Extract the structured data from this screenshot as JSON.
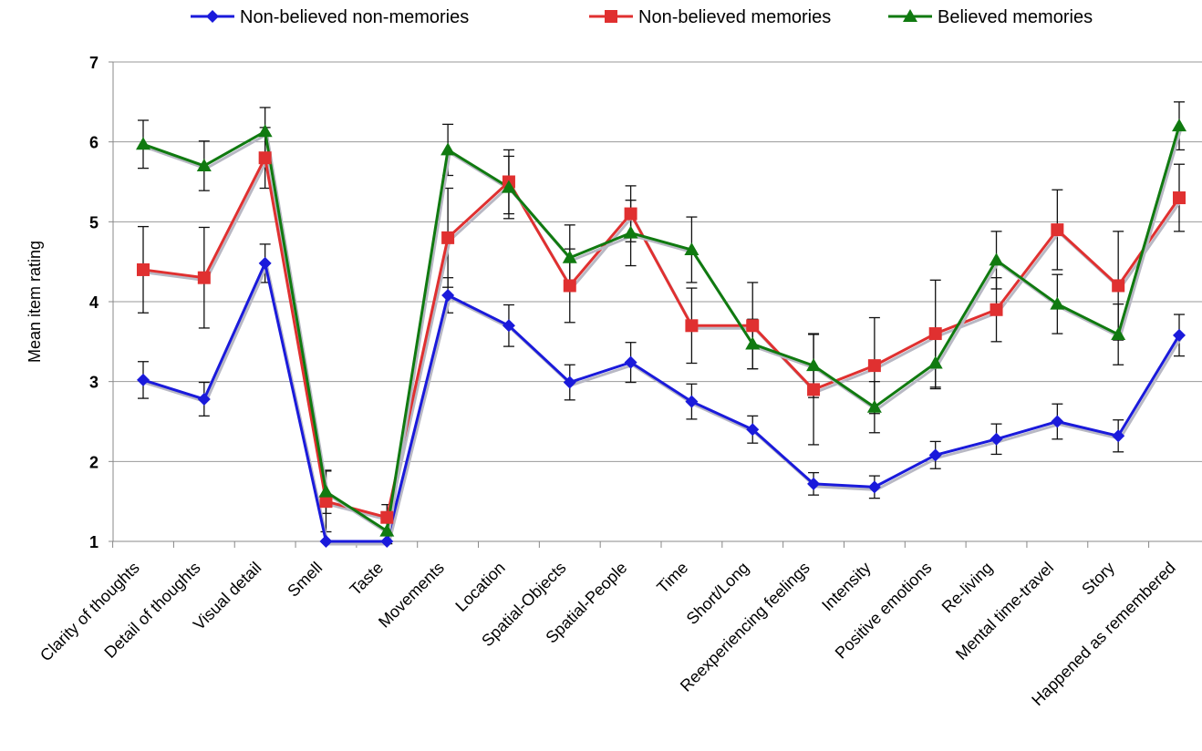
{
  "chart_data": {
    "type": "line",
    "title": "",
    "xlabel": "",
    "ylabel": "Mean item rating",
    "ylim": [
      1,
      7
    ],
    "yticks": [
      1,
      2,
      3,
      4,
      5,
      6,
      7
    ],
    "grid": "horizontal",
    "legend_position": "top",
    "categories": [
      "Clarity of thoughts",
      "Detail of thoughts",
      "Visual detail",
      "Smell",
      "Taste",
      "Movements",
      "Location",
      "Spatial-Objects",
      "Spatial-People",
      "Time",
      "Short/Long",
      "Reexperiencing feelings",
      "Intensity",
      "Positive emotions",
      "Re-living",
      "Mental time-travel",
      "Story",
      "Happened as remembered"
    ],
    "series": [
      {
        "name": "Non-believed non-memories",
        "color": "#1a1adb",
        "marker": "diamond",
        "values": [
          3.02,
          2.78,
          4.48,
          1.0,
          1.0,
          4.08,
          3.7,
          2.99,
          3.24,
          2.75,
          2.4,
          1.72,
          1.68,
          2.08,
          2.28,
          2.5,
          2.32,
          3.58
        ],
        "errors": [
          0.23,
          0.21,
          0.24,
          0.0,
          0.0,
          0.22,
          0.26,
          0.22,
          0.25,
          0.22,
          0.17,
          0.14,
          0.14,
          0.17,
          0.19,
          0.22,
          0.2,
          0.26
        ]
      },
      {
        "name": "Non-believed memories",
        "color": "#e03030",
        "marker": "square",
        "values": [
          4.4,
          4.3,
          5.8,
          1.5,
          1.3,
          4.8,
          5.5,
          4.2,
          5.1,
          3.7,
          3.7,
          2.9,
          3.2,
          3.6,
          3.9,
          4.9,
          4.2,
          5.3
        ],
        "errors": [
          0.54,
          0.63,
          0.38,
          0.38,
          0.16,
          0.62,
          0.4,
          0.46,
          0.35,
          0.47,
          0.54,
          0.69,
          0.6,
          0.67,
          0.4,
          0.5,
          0.68,
          0.42
        ]
      },
      {
        "name": "Believed memories",
        "color": "#107a10",
        "marker": "triangle",
        "values": [
          5.97,
          5.7,
          6.13,
          1.62,
          1.13,
          5.9,
          5.43,
          4.55,
          4.86,
          4.65,
          3.47,
          3.2,
          2.68,
          3.23,
          4.52,
          3.97,
          3.59,
          6.2
        ],
        "errors": [
          0.3,
          0.31,
          0.3,
          0.27,
          0.16,
          0.32,
          0.39,
          0.41,
          0.41,
          0.41,
          0.31,
          0.4,
          0.32,
          0.32,
          0.36,
          0.37,
          0.38,
          0.3
        ]
      }
    ]
  }
}
